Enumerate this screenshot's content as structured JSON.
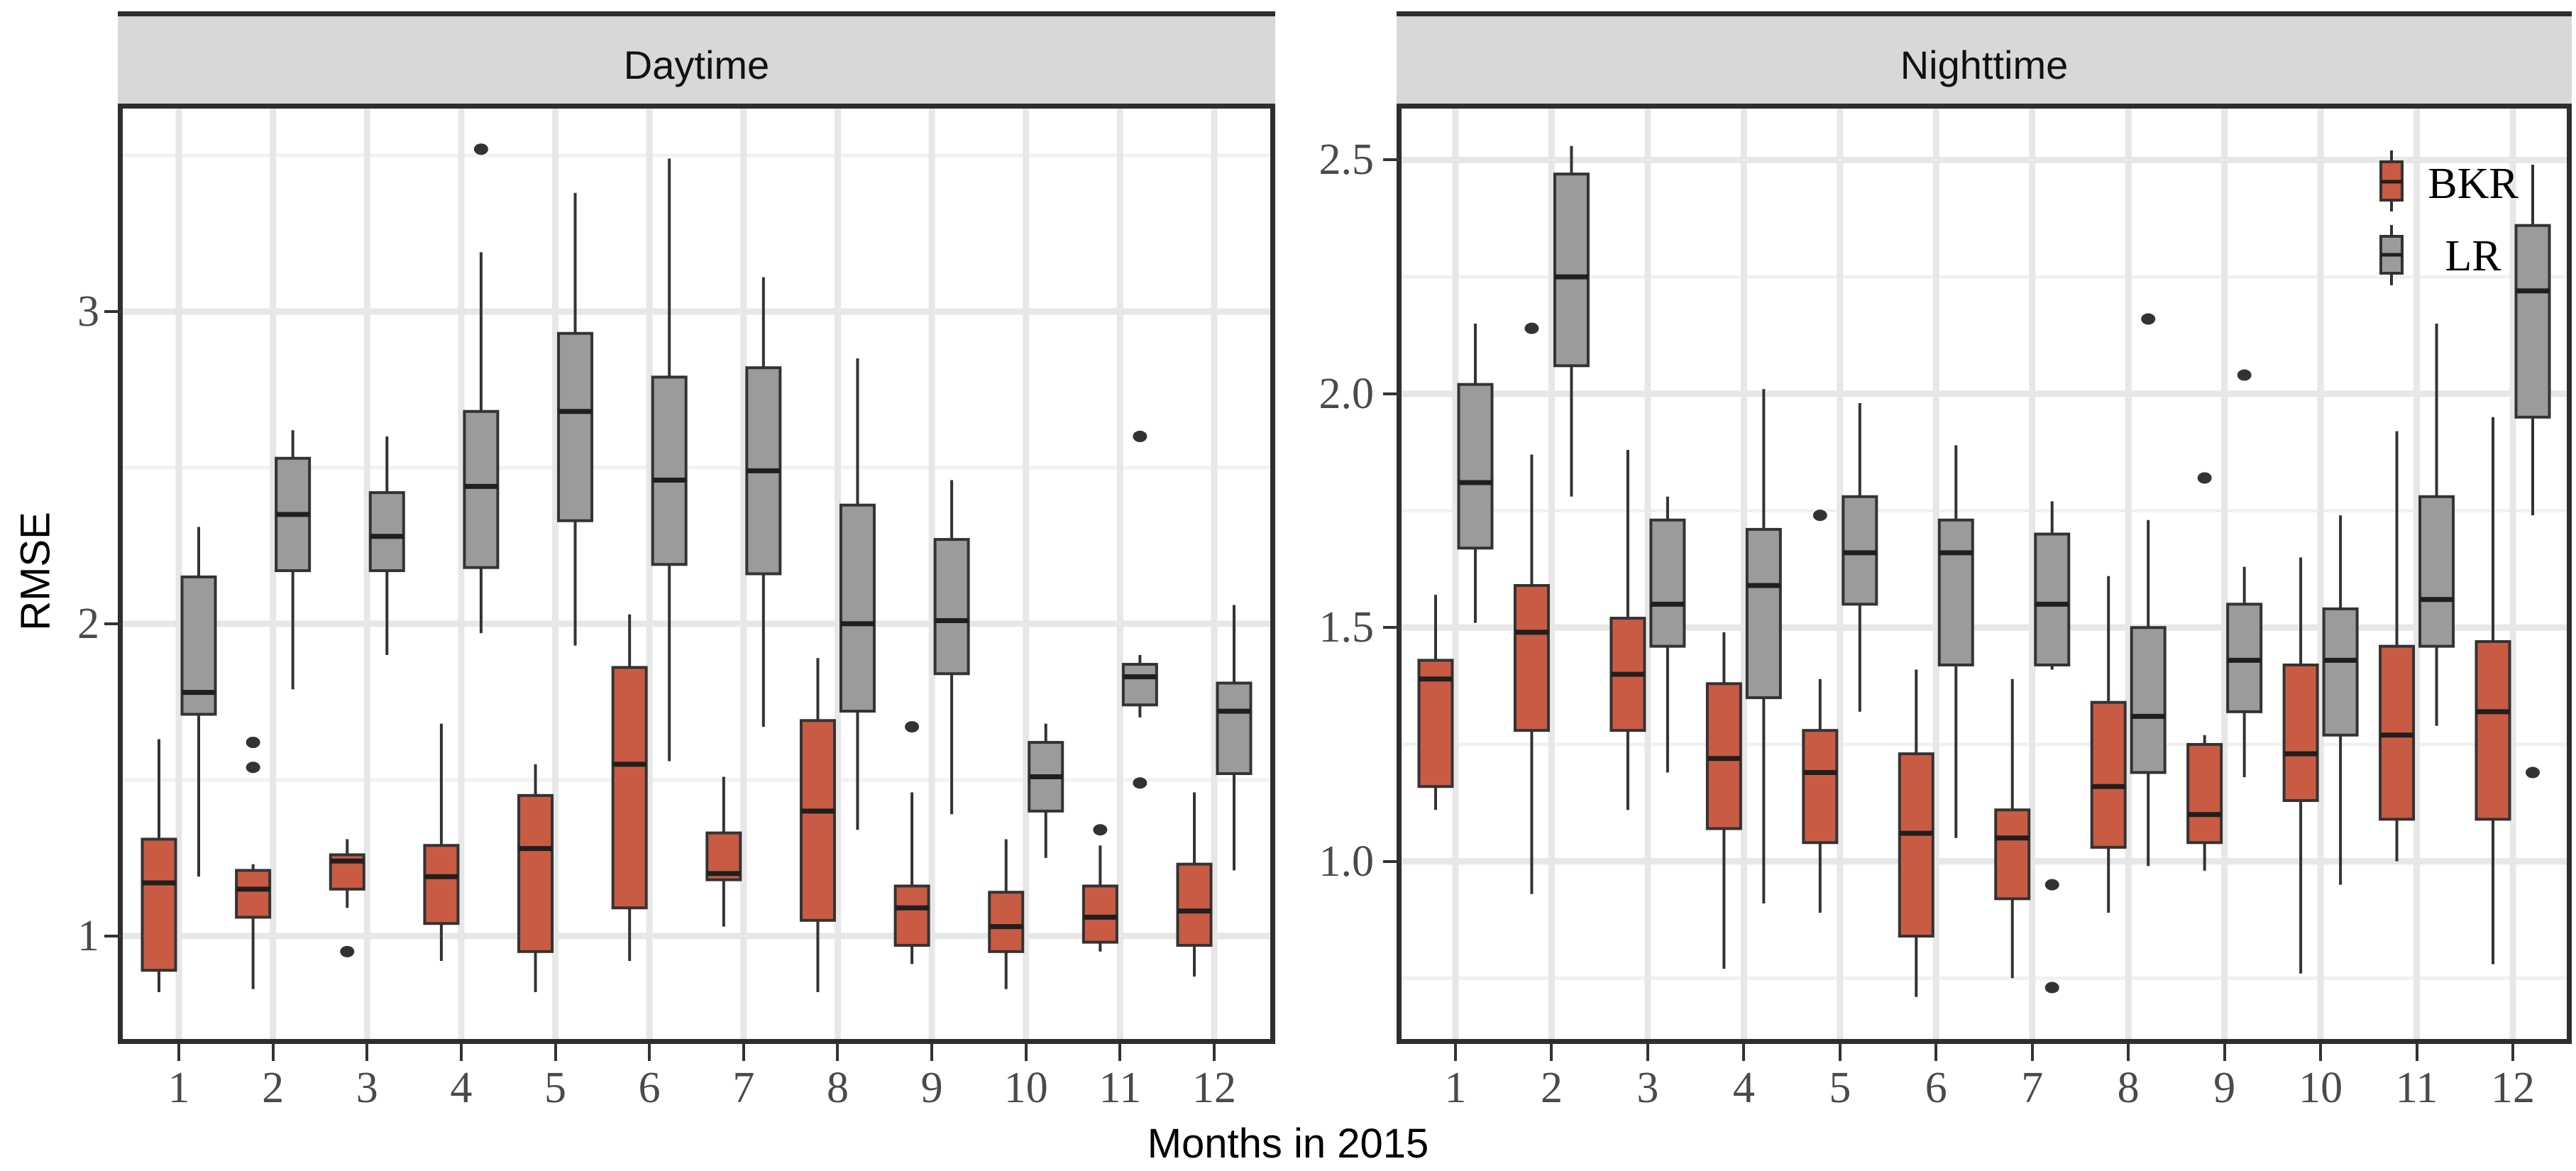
{
  "axes": {
    "y_label": "RMSE",
    "x_label": "Months in 2015"
  },
  "legend": {
    "items": [
      {
        "label": "BKR",
        "color": "#C95B44"
      },
      {
        "label": "LR",
        "color": "#9B9B9B"
      }
    ]
  },
  "colors": {
    "bkr_fill": "#C95B44",
    "lr_fill": "#9B9B9B",
    "box_stroke": "#333333",
    "median_stroke": "#1F1F1F",
    "outlier": "#333333",
    "panel_border": "#2E2E2E",
    "strip_bg": "#D8D8D8",
    "grid_major": "#E7E7E7",
    "grid_minor": "#F1F1F1",
    "tick_label": "#4A4A4A"
  },
  "chart_data": {
    "type": "boxplot",
    "x_categories": [
      "1",
      "2",
      "3",
      "4",
      "5",
      "6",
      "7",
      "8",
      "9",
      "10",
      "11",
      "12"
    ],
    "panels": [
      {
        "title": "Daytime",
        "ylim": [
          0.67,
          3.65
        ],
        "y_ticks": [
          {
            "v": 1,
            "label": "1"
          },
          {
            "v": 2,
            "label": "2"
          },
          {
            "v": 3,
            "label": "3"
          }
        ],
        "y_minor": [
          1.5,
          2.5,
          3.5
        ],
        "series": [
          {
            "name": "BKR",
            "boxes": [
              {
                "lo": 0.82,
                "q1": 0.89,
                "med": 1.17,
                "q3": 1.31,
                "hi": 1.63,
                "out": []
              },
              {
                "lo": 0.83,
                "q1": 1.06,
                "med": 1.15,
                "q3": 1.21,
                "hi": 1.23,
                "out": [
                  1.54,
                  1.62
                ]
              },
              {
                "lo": 1.09,
                "q1": 1.15,
                "med": 1.24,
                "q3": 1.26,
                "hi": 1.31,
                "out": [
                  0.95
                ]
              },
              {
                "lo": 0.92,
                "q1": 1.04,
                "med": 1.19,
                "q3": 1.29,
                "hi": 1.68,
                "out": []
              },
              {
                "lo": 0.82,
                "q1": 0.95,
                "med": 1.28,
                "q3": 1.45,
                "hi": 1.55,
                "out": []
              },
              {
                "lo": 0.92,
                "q1": 1.09,
                "med": 1.55,
                "q3": 1.86,
                "hi": 2.03,
                "out": []
              },
              {
                "lo": 1.03,
                "q1": 1.18,
                "med": 1.2,
                "q3": 1.33,
                "hi": 1.51,
                "out": []
              },
              {
                "lo": 0.82,
                "q1": 1.05,
                "med": 1.4,
                "q3": 1.69,
                "hi": 1.89,
                "out": []
              },
              {
                "lo": 0.91,
                "q1": 0.97,
                "med": 1.09,
                "q3": 1.16,
                "hi": 1.46,
                "out": [
                  1.67
                ]
              },
              {
                "lo": 0.83,
                "q1": 0.95,
                "med": 1.03,
                "q3": 1.14,
                "hi": 1.31,
                "out": []
              },
              {
                "lo": 0.95,
                "q1": 0.98,
                "med": 1.06,
                "q3": 1.16,
                "hi": 1.29,
                "out": [
                  1.34
                ]
              },
              {
                "lo": 0.87,
                "q1": 0.97,
                "med": 1.08,
                "q3": 1.23,
                "hi": 1.46,
                "out": []
              }
            ]
          },
          {
            "name": "LR",
            "boxes": [
              {
                "lo": 1.19,
                "q1": 1.71,
                "med": 1.78,
                "q3": 2.15,
                "hi": 2.31,
                "out": []
              },
              {
                "lo": 1.79,
                "q1": 2.17,
                "med": 2.35,
                "q3": 2.53,
                "hi": 2.62,
                "out": []
              },
              {
                "lo": 1.9,
                "q1": 2.17,
                "med": 2.28,
                "q3": 2.42,
                "hi": 2.6,
                "out": []
              },
              {
                "lo": 1.97,
                "q1": 2.18,
                "med": 2.44,
                "q3": 2.68,
                "hi": 3.19,
                "out": [
                  3.52
                ]
              },
              {
                "lo": 1.93,
                "q1": 2.33,
                "med": 2.68,
                "q3": 2.93,
                "hi": 3.38,
                "out": []
              },
              {
                "lo": 1.56,
                "q1": 2.19,
                "med": 2.46,
                "q3": 2.79,
                "hi": 3.49,
                "out": []
              },
              {
                "lo": 1.67,
                "q1": 2.16,
                "med": 2.49,
                "q3": 2.82,
                "hi": 3.11,
                "out": []
              },
              {
                "lo": 1.34,
                "q1": 1.72,
                "med": 2.0,
                "q3": 2.38,
                "hi": 2.85,
                "out": []
              },
              {
                "lo": 1.39,
                "q1": 1.84,
                "med": 2.01,
                "q3": 2.27,
                "hi": 2.46,
                "out": []
              },
              {
                "lo": 1.25,
                "q1": 1.4,
                "med": 1.51,
                "q3": 1.62,
                "hi": 1.68,
                "out": []
              },
              {
                "lo": 1.7,
                "q1": 1.74,
                "med": 1.83,
                "q3": 1.87,
                "hi": 1.9,
                "out": [
                  2.6,
                  1.49
                ]
              },
              {
                "lo": 1.21,
                "q1": 1.52,
                "med": 1.72,
                "q3": 1.81,
                "hi": 2.06,
                "out": []
              }
            ]
          }
        ]
      },
      {
        "title": "Nighttime",
        "ylim": [
          0.62,
          2.61
        ],
        "y_ticks": [
          {
            "v": 1.0,
            "label": "1.0"
          },
          {
            "v": 1.5,
            "label": "1.5"
          },
          {
            "v": 2.0,
            "label": "2.0"
          },
          {
            "v": 2.5,
            "label": "2.5"
          }
        ],
        "y_minor": [
          0.75,
          1.25,
          1.75,
          2.25
        ],
        "series": [
          {
            "name": "BKR",
            "boxes": [
              {
                "lo": 1.11,
                "q1": 1.16,
                "med": 1.39,
                "q3": 1.43,
                "hi": 1.57,
                "out": []
              },
              {
                "lo": 0.93,
                "q1": 1.28,
                "med": 1.49,
                "q3": 1.59,
                "hi": 1.87,
                "out": [
                  2.14
                ]
              },
              {
                "lo": 1.11,
                "q1": 1.28,
                "med": 1.4,
                "q3": 1.52,
                "hi": 1.88,
                "out": []
              },
              {
                "lo": 0.77,
                "q1": 1.07,
                "med": 1.22,
                "q3": 1.38,
                "hi": 1.49,
                "out": []
              },
              {
                "lo": 0.89,
                "q1": 1.04,
                "med": 1.19,
                "q3": 1.28,
                "hi": 1.39,
                "out": [
                  1.74
                ]
              },
              {
                "lo": 0.71,
                "q1": 0.84,
                "med": 1.06,
                "q3": 1.23,
                "hi": 1.41,
                "out": []
              },
              {
                "lo": 0.75,
                "q1": 0.92,
                "med": 1.05,
                "q3": 1.11,
                "hi": 1.39,
                "out": []
              },
              {
                "lo": 0.89,
                "q1": 1.03,
                "med": 1.16,
                "q3": 1.34,
                "hi": 1.61,
                "out": []
              },
              {
                "lo": 0.98,
                "q1": 1.04,
                "med": 1.1,
                "q3": 1.25,
                "hi": 1.27,
                "out": [
                  1.82
                ]
              },
              {
                "lo": 0.76,
                "q1": 1.13,
                "med": 1.23,
                "q3": 1.42,
                "hi": 1.65,
                "out": []
              },
              {
                "lo": 1.0,
                "q1": 1.09,
                "med": 1.27,
                "q3": 1.46,
                "hi": 1.92,
                "out": []
              },
              {
                "lo": 0.78,
                "q1": 1.09,
                "med": 1.32,
                "q3": 1.47,
                "hi": 1.95,
                "out": []
              }
            ]
          },
          {
            "name": "LR",
            "boxes": [
              {
                "lo": 1.51,
                "q1": 1.67,
                "med": 1.81,
                "q3": 2.02,
                "hi": 2.15,
                "out": []
              },
              {
                "lo": 1.78,
                "q1": 2.06,
                "med": 2.25,
                "q3": 2.47,
                "hi": 2.53,
                "out": []
              },
              {
                "lo": 1.19,
                "q1": 1.46,
                "med": 1.55,
                "q3": 1.73,
                "hi": 1.78,
                "out": []
              },
              {
                "lo": 0.91,
                "q1": 1.35,
                "med": 1.59,
                "q3": 1.71,
                "hi": 2.01,
                "out": []
              },
              {
                "lo": 1.32,
                "q1": 1.55,
                "med": 1.66,
                "q3": 1.78,
                "hi": 1.98,
                "out": []
              },
              {
                "lo": 1.05,
                "q1": 1.42,
                "med": 1.66,
                "q3": 1.73,
                "hi": 1.89,
                "out": []
              },
              {
                "lo": 1.41,
                "q1": 1.42,
                "med": 1.55,
                "q3": 1.7,
                "hi": 1.77,
                "out": [
                  0.95,
                  0.73
                ]
              },
              {
                "lo": 0.99,
                "q1": 1.19,
                "med": 1.31,
                "q3": 1.5,
                "hi": 1.73,
                "out": [
                  2.16
                ]
              },
              {
                "lo": 1.18,
                "q1": 1.32,
                "med": 1.43,
                "q3": 1.55,
                "hi": 1.63,
                "out": [
                  2.04
                ]
              },
              {
                "lo": 0.95,
                "q1": 1.27,
                "med": 1.43,
                "q3": 1.54,
                "hi": 1.74,
                "out": []
              },
              {
                "lo": 1.29,
                "q1": 1.46,
                "med": 1.56,
                "q3": 1.78,
                "hi": 2.15,
                "out": []
              },
              {
                "lo": 1.74,
                "q1": 1.95,
                "med": 2.22,
                "q3": 2.36,
                "hi": 2.49,
                "out": [
                  1.19
                ]
              }
            ]
          }
        ]
      }
    ]
  }
}
